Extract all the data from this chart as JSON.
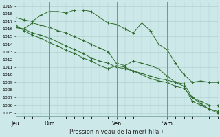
{
  "title": "Pression niveau de la mer( hPa )",
  "background_color": "#cce8e8",
  "grid_color": "#aacccc",
  "line_color": "#2d6b2d",
  "ylim": [
    1004.5,
    1019.5
  ],
  "yticks": [
    1005,
    1006,
    1007,
    1008,
    1009,
    1010,
    1011,
    1012,
    1013,
    1014,
    1015,
    1016,
    1017,
    1018,
    1019
  ],
  "day_labels": [
    "Jeu",
    "Dim",
    "Ven",
    "Sam"
  ],
  "day_positions": [
    0,
    24,
    72,
    108
  ],
  "xlim": [
    0,
    144
  ],
  "series": [
    {
      "x": [
        0,
        6,
        12,
        18,
        24,
        30,
        36,
        42,
        48,
        54,
        60,
        66,
        72,
        78,
        84,
        90,
        96,
        102,
        108,
        114,
        120,
        126,
        132,
        138,
        144
      ],
      "y": [
        1017.5,
        1017.2,
        1017.0,
        1017.8,
        1018.3,
        1018.3,
        1018.1,
        1018.5,
        1018.5,
        1018.3,
        1017.5,
        1016.8,
        1016.6,
        1016.0,
        1015.5,
        1016.8,
        1015.8,
        1014.0,
        1013.3,
        1011.5,
        1010.0,
        1009.0,
        1009.2,
        1009.0,
        1009.0
      ]
    },
    {
      "x": [
        0,
        6,
        12,
        18,
        24,
        30,
        36,
        42,
        48,
        54,
        60,
        66,
        72,
        78,
        84,
        90,
        96,
        102,
        108,
        114,
        120,
        126,
        132,
        138,
        144
      ],
      "y": [
        1016.2,
        1016.0,
        1016.8,
        1016.5,
        1016.2,
        1015.8,
        1015.5,
        1015.0,
        1014.5,
        1014.0,
        1013.5,
        1013.0,
        1011.5,
        1011.2,
        1011.8,
        1011.5,
        1011.2,
        1010.8,
        1009.8,
        1009.0,
        1008.5,
        1006.5,
        1006.0,
        1005.5,
        1005.0
      ]
    },
    {
      "x": [
        0,
        6,
        12,
        18,
        24,
        30,
        36,
        42,
        48,
        54,
        60,
        66,
        72,
        78,
        84,
        90,
        96,
        102,
        108,
        114,
        120,
        126,
        132,
        138,
        144
      ],
      "y": [
        1016.2,
        1016.0,
        1015.5,
        1015.2,
        1014.8,
        1014.3,
        1013.8,
        1013.3,
        1012.8,
        1012.2,
        1011.8,
        1011.5,
        1011.0,
        1010.8,
        1010.5,
        1010.2,
        1009.8,
        1009.5,
        1009.3,
        1009.0,
        1008.8,
        1007.0,
        1006.2,
        1005.5,
        1005.2
      ]
    },
    {
      "x": [
        0,
        6,
        12,
        18,
        24,
        30,
        36,
        42,
        48,
        54,
        60,
        66,
        72,
        78,
        84,
        90,
        96,
        102,
        108,
        114,
        120,
        126,
        132,
        138,
        144
      ],
      "y": [
        1016.5,
        1015.8,
        1015.2,
        1014.8,
        1014.2,
        1013.8,
        1013.2,
        1012.8,
        1012.2,
        1011.8,
        1011.2,
        1010.8,
        1011.2,
        1011.0,
        1010.5,
        1010.0,
        1009.5,
        1009.2,
        1009.0,
        1008.5,
        1008.2,
        1007.0,
        1006.5,
        1006.0,
        1006.0
      ]
    }
  ]
}
